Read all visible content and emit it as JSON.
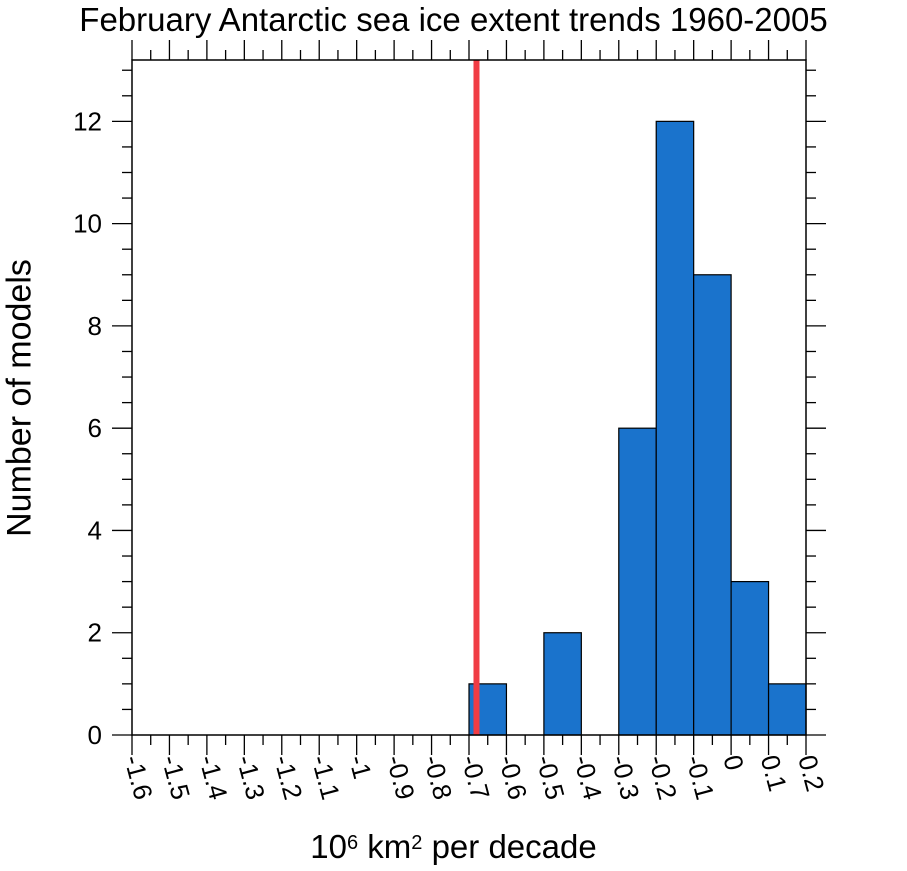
{
  "chart_data": {
    "type": "bar",
    "title": "February Antarctic sea ice extent trends 1960-2005",
    "ylabel": "Number of models",
    "xlabel": {
      "prefix": "10",
      "exp1": "6",
      "unit": " km",
      "exp2": "2",
      "suffix": " per decade"
    },
    "xlim": [
      -1.6,
      0.2
    ],
    "ylim": [
      0,
      13.2
    ],
    "bin_width": 0.1,
    "x_ticks": [
      -1.6,
      -1.5,
      -1.4,
      -1.3,
      -1.2,
      -1.1,
      -1.0,
      -0.9,
      -0.8,
      -0.7,
      -0.6,
      -0.5,
      -0.4,
      -0.3,
      -0.2,
      -0.1,
      0.0,
      0.1,
      0.2
    ],
    "x_tick_labels": [
      "-1.6",
      "-1.5",
      "-1.4",
      "-1.3",
      "-1.2",
      "-1.1",
      "-1",
      "-0.9",
      "-0.8",
      "-0.7",
      "-0.6",
      "-0.5",
      "-0.4",
      "-0.3",
      "-0.2",
      "-0.1",
      "0",
      "0.1",
      "0.2"
    ],
    "y_ticks": [
      0,
      2,
      4,
      6,
      8,
      10,
      12
    ],
    "y_tick_labels": [
      "0",
      "2",
      "4",
      "6",
      "8",
      "10",
      "12"
    ],
    "bins": [
      {
        "start": -0.7,
        "end": -0.6,
        "count": 1
      },
      {
        "start": -0.5,
        "end": -0.4,
        "count": 2
      },
      {
        "start": -0.3,
        "end": -0.2,
        "count": 6
      },
      {
        "start": -0.2,
        "end": -0.1,
        "count": 12
      },
      {
        "start": -0.1,
        "end": 0.0,
        "count": 9
      },
      {
        "start": 0.0,
        "end": 0.1,
        "count": 3
      },
      {
        "start": 0.1,
        "end": 0.2,
        "count": 1
      }
    ],
    "reference_line": {
      "x": -0.68,
      "color": "#f03c44"
    },
    "bar_color": "#1a73cc",
    "grid": false
  }
}
